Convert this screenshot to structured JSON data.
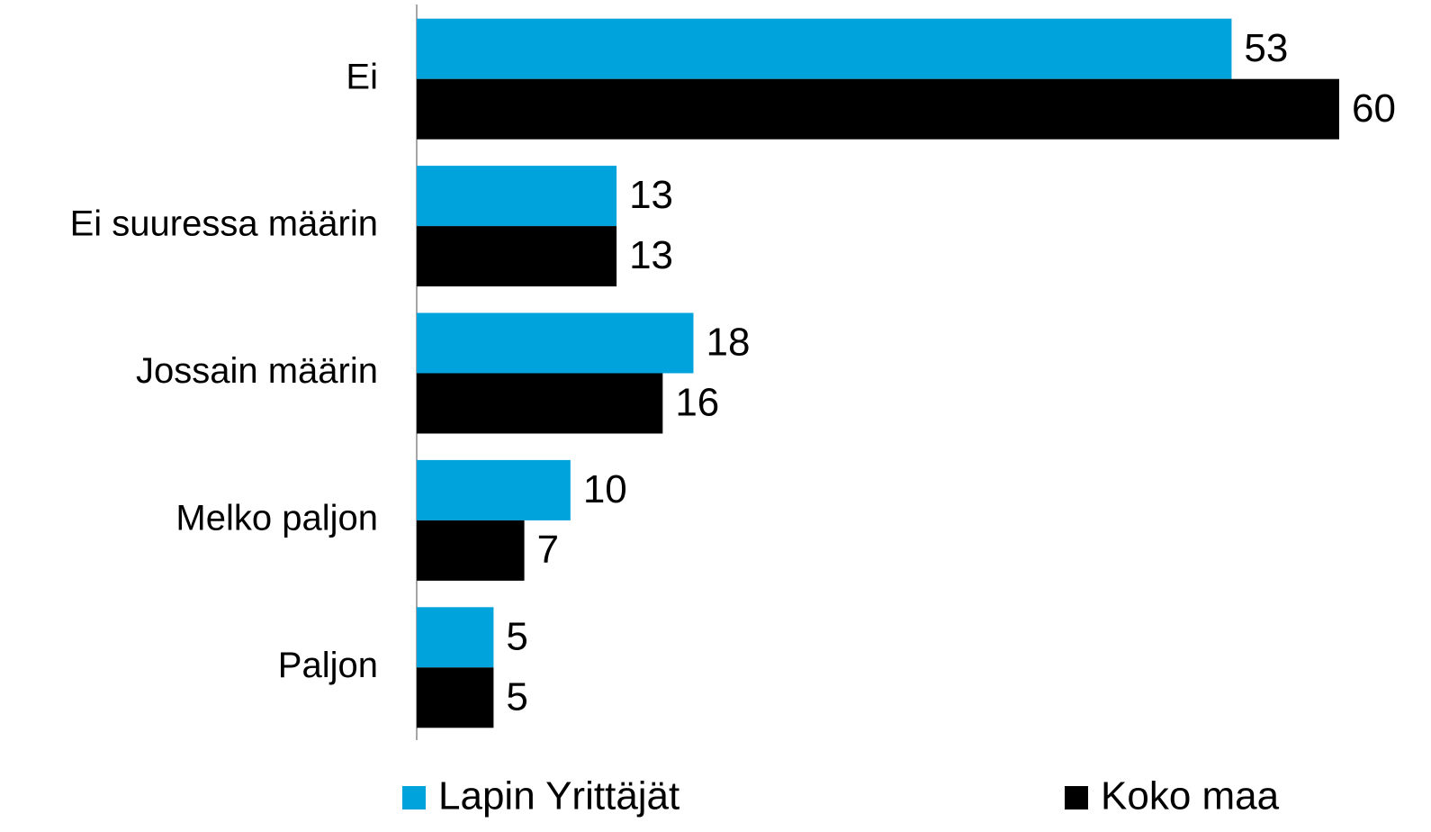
{
  "chart_data": {
    "type": "hbar",
    "categories": [
      "Ei",
      "Ei suuressa määrin",
      "Jossain määrin",
      "Melko paljon",
      "Paljon"
    ],
    "series": [
      {
        "name": "Lapin Yrittäjät",
        "color": "#00a3dc",
        "values": [
          53,
          13,
          18,
          10,
          5
        ]
      },
      {
        "name": "Koko maa",
        "color": "#000000",
        "values": [
          60,
          13,
          16,
          7,
          5
        ]
      }
    ]
  }
}
